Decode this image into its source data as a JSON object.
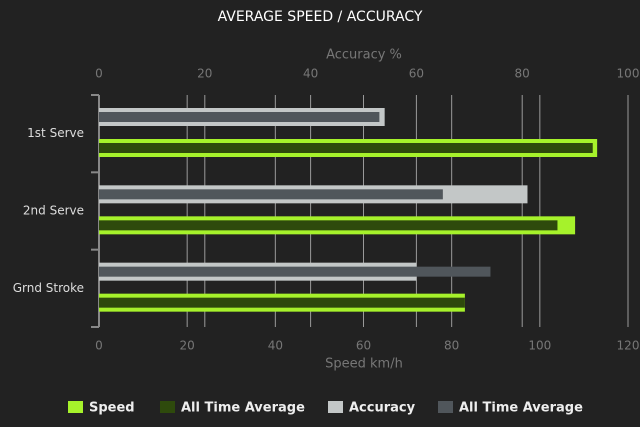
{
  "chart_data": {
    "type": "hbar",
    "title": "AVERAGE SPEED / ACCURACY",
    "categories": [
      "1st Serve",
      "2nd Serve",
      "Grnd Stroke"
    ],
    "xlabel": "Speed km/h",
    "x2label": "Accuracy %",
    "xlim": [
      0,
      120
    ],
    "xticks": [
      0,
      20,
      40,
      60,
      80,
      100,
      120
    ],
    "x2lim": [
      0,
      100
    ],
    "x2ticks": [
      0,
      20,
      40,
      60,
      80,
      100
    ],
    "grid": true,
    "legend": "bottom",
    "series": [
      {
        "name": "Speed",
        "color": "#a6f22b",
        "values": [
          113,
          108,
          83
        ]
      },
      {
        "name": "All Time Average",
        "color": "#2e4a0c",
        "values": [
          112,
          104,
          83
        ]
      },
      {
        "name": "Accuracy",
        "color": "#c3c7c7",
        "axis": "x2",
        "values": [
          54,
          81,
          60
        ]
      },
      {
        "name": "All Time Average",
        "color": "#50565b",
        "axis": "x2",
        "values": [
          53,
          65,
          74
        ]
      }
    ]
  }
}
